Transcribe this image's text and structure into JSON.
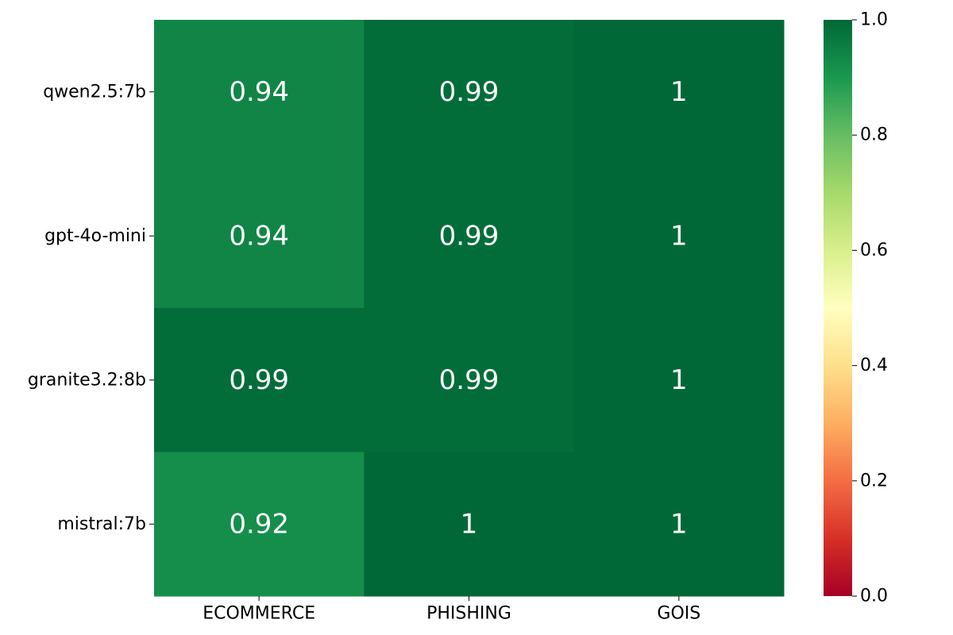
{
  "chart_data": {
    "type": "heatmap",
    "rows": [
      "qwen2.5:7b",
      "gpt-4o-mini",
      "granite3.2:8b",
      "mistral:7b"
    ],
    "columns": [
      "ECOMMERCE",
      "PHISHING",
      "GOIS"
    ],
    "values": [
      [
        0.94,
        0.99,
        1.0
      ],
      [
        0.94,
        0.99,
        1.0
      ],
      [
        0.99,
        0.99,
        1.0
      ],
      [
        0.92,
        1.0,
        1.0
      ]
    ],
    "annotations": [
      [
        "0.94",
        "0.99",
        "1"
      ],
      [
        "0.94",
        "0.99",
        "1"
      ],
      [
        "0.99",
        "0.99",
        "1"
      ],
      [
        "0.92",
        "1",
        "1"
      ]
    ],
    "colormap": "RdYlGn",
    "colorbar": {
      "range": [
        0.0,
        1.0
      ],
      "ticks": [
        "0.0",
        "0.2",
        "0.4",
        "0.6",
        "0.8",
        "1.0"
      ]
    },
    "colors": {
      "low": "#a50026",
      "mid": "#ffffbf",
      "high": "#006837",
      "annotation_text": "#ffffff"
    }
  }
}
